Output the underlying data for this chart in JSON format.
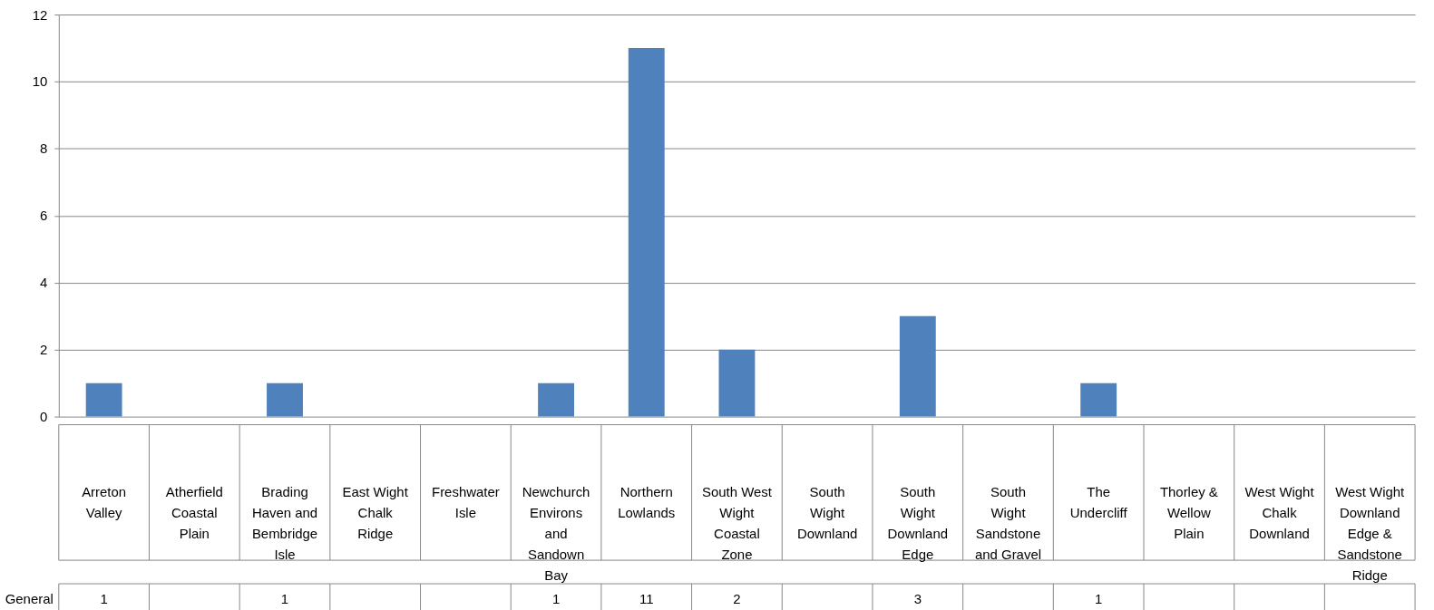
{
  "chart_data": {
    "type": "bar",
    "categories": [
      "Arreton Valley",
      "Atherfield Coastal Plain",
      "Brading Haven and Bembridge Isle",
      "East Wight Chalk Ridge",
      "Freshwater Isle",
      "Newchurch Environs and Sandown Bay",
      "Northern Lowlands",
      "South West Wight Coastal Zone",
      "South Wight Downland",
      "South Wight Downland Edge",
      "South Wight Sandstone and Gravel",
      "The Undercliff",
      "Thorley & Wellow Plain",
      "West Wight Chalk Downland",
      "West Wight Downland Edge & Sandstone Ridge"
    ],
    "series": [
      {
        "name": "General",
        "color": "#4f81bd",
        "values": [
          1,
          null,
          1,
          null,
          null,
          1,
          11,
          2,
          null,
          3,
          null,
          1,
          null,
          null,
          null
        ]
      }
    ],
    "ylim": [
      0,
      12
    ],
    "yticks": [
      0,
      2,
      4,
      6,
      8,
      10,
      12
    ],
    "grid": "y",
    "data_labels": true
  }
}
